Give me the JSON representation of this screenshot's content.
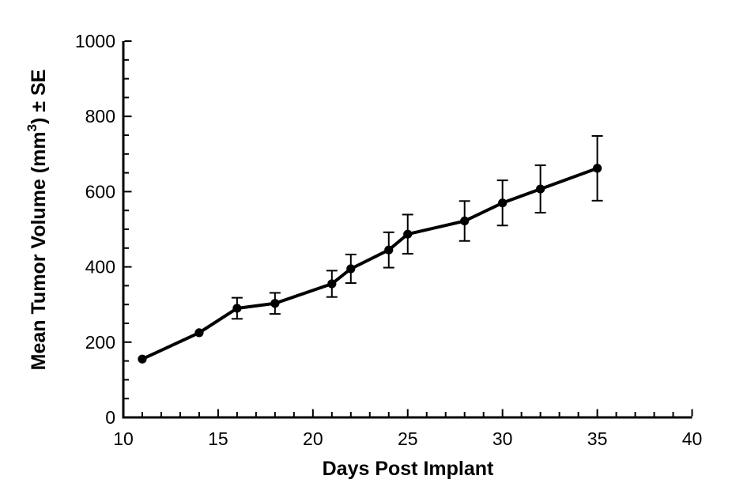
{
  "figure": {
    "background": "#ffffff",
    "axis_color": "#000000",
    "line_color": "#000000",
    "marker_color": "#000000",
    "error_bar_color": "#000000"
  },
  "chart_data": {
    "type": "line",
    "title": "",
    "xlabel": "Days Post Implant",
    "ylabel": "Mean Tumor Volume (mm³) ± SE",
    "ylabel_parts": {
      "prefix": "Mean Tumor Volume (mm",
      "superscript": "3",
      "suffix": ") ± SE"
    },
    "xlim": [
      10,
      40
    ],
    "ylim": [
      0,
      1000
    ],
    "x_major_ticks": [
      10,
      15,
      20,
      25,
      30,
      35,
      40
    ],
    "x_minor_step": 1,
    "y_major_ticks": [
      0,
      200,
      400,
      600,
      800,
      1000
    ],
    "y_minor_step": 50,
    "grid": false,
    "legend": null,
    "marker": "filled-circle",
    "error_bar_style": "plus-minus-SE-caps",
    "series": [
      {
        "name": "Mean tumor volume",
        "points": [
          {
            "x": 11,
            "y": 155,
            "se": null
          },
          {
            "x": 14,
            "y": 225,
            "se": null
          },
          {
            "x": 16,
            "y": 290,
            "se": 28
          },
          {
            "x": 18,
            "y": 303,
            "se": 28
          },
          {
            "x": 21,
            "y": 355,
            "se": 35
          },
          {
            "x": 22,
            "y": 395,
            "se": 38
          },
          {
            "x": 24,
            "y": 445,
            "se": 47
          },
          {
            "x": 25,
            "y": 487,
            "se": 52
          },
          {
            "x": 28,
            "y": 522,
            "se": 53
          },
          {
            "x": 30,
            "y": 570,
            "se": 60
          },
          {
            "x": 32,
            "y": 607,
            "se": 63
          },
          {
            "x": 35,
            "y": 662,
            "se": 86
          }
        ]
      }
    ]
  }
}
